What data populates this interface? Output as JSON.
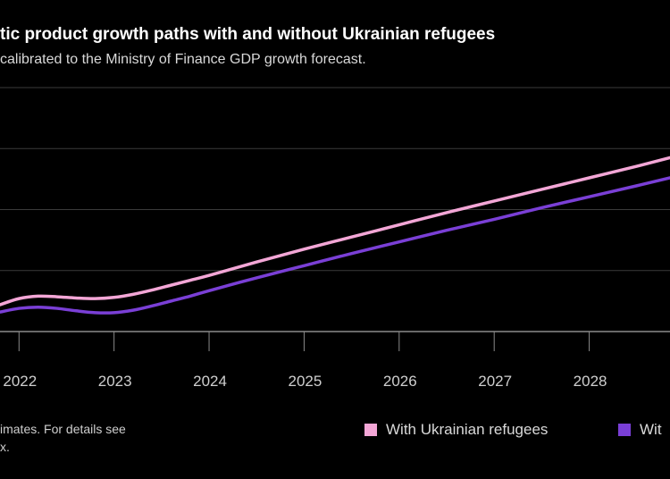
{
  "chart": {
    "title": "tic product growth paths with and without Ukrainian refugees",
    "subtitle": "calibrated to the Ministry of Finance GDP growth forecast.",
    "note_line1": "imates. For details see",
    "note_line2": "x.",
    "colors": {
      "with": "#f3a6d6",
      "without": "#7a3fd6",
      "grid": "#3a3a3a",
      "axis": "#8a8a8a"
    }
  },
  "chart_data": {
    "type": "line",
    "x": [
      2021.8,
      2022.0,
      2022.2,
      2022.4,
      2022.6,
      2022.8,
      2023.0,
      2023.2,
      2023.4,
      2023.6,
      2023.8,
      2024.0,
      2024.5,
      2025.0,
      2025.5,
      2026.0,
      2026.5,
      2027.0,
      2027.5,
      2028.0,
      2028.5,
      2028.85
    ],
    "x_ticks": [
      "2022",
      "2023",
      "2024",
      "2025",
      "2026",
      "2027",
      "2028"
    ],
    "x_tick_values": [
      2022,
      2023,
      2024,
      2025,
      2026,
      2027,
      2028
    ],
    "xlim": [
      2021.8,
      2028.85
    ],
    "ylim": [
      0,
      4
    ],
    "y_gridlines": [
      1,
      2,
      3,
      4
    ],
    "series": [
      {
        "name": "With Ukrainian refugees",
        "values": [
          0.44,
          0.54,
          0.58,
          0.57,
          0.55,
          0.54,
          0.56,
          0.61,
          0.68,
          0.76,
          0.84,
          0.92,
          1.14,
          1.35,
          1.55,
          1.75,
          1.95,
          2.14,
          2.33,
          2.52,
          2.71,
          2.85
        ]
      },
      {
        "name": "Wit",
        "values": [
          0.32,
          0.38,
          0.4,
          0.38,
          0.34,
          0.31,
          0.31,
          0.35,
          0.42,
          0.5,
          0.58,
          0.67,
          0.88,
          1.08,
          1.28,
          1.47,
          1.66,
          1.84,
          2.03,
          2.21,
          2.39,
          2.52
        ]
      }
    ],
    "legend_position": "bottom-right",
    "grid": true
  }
}
